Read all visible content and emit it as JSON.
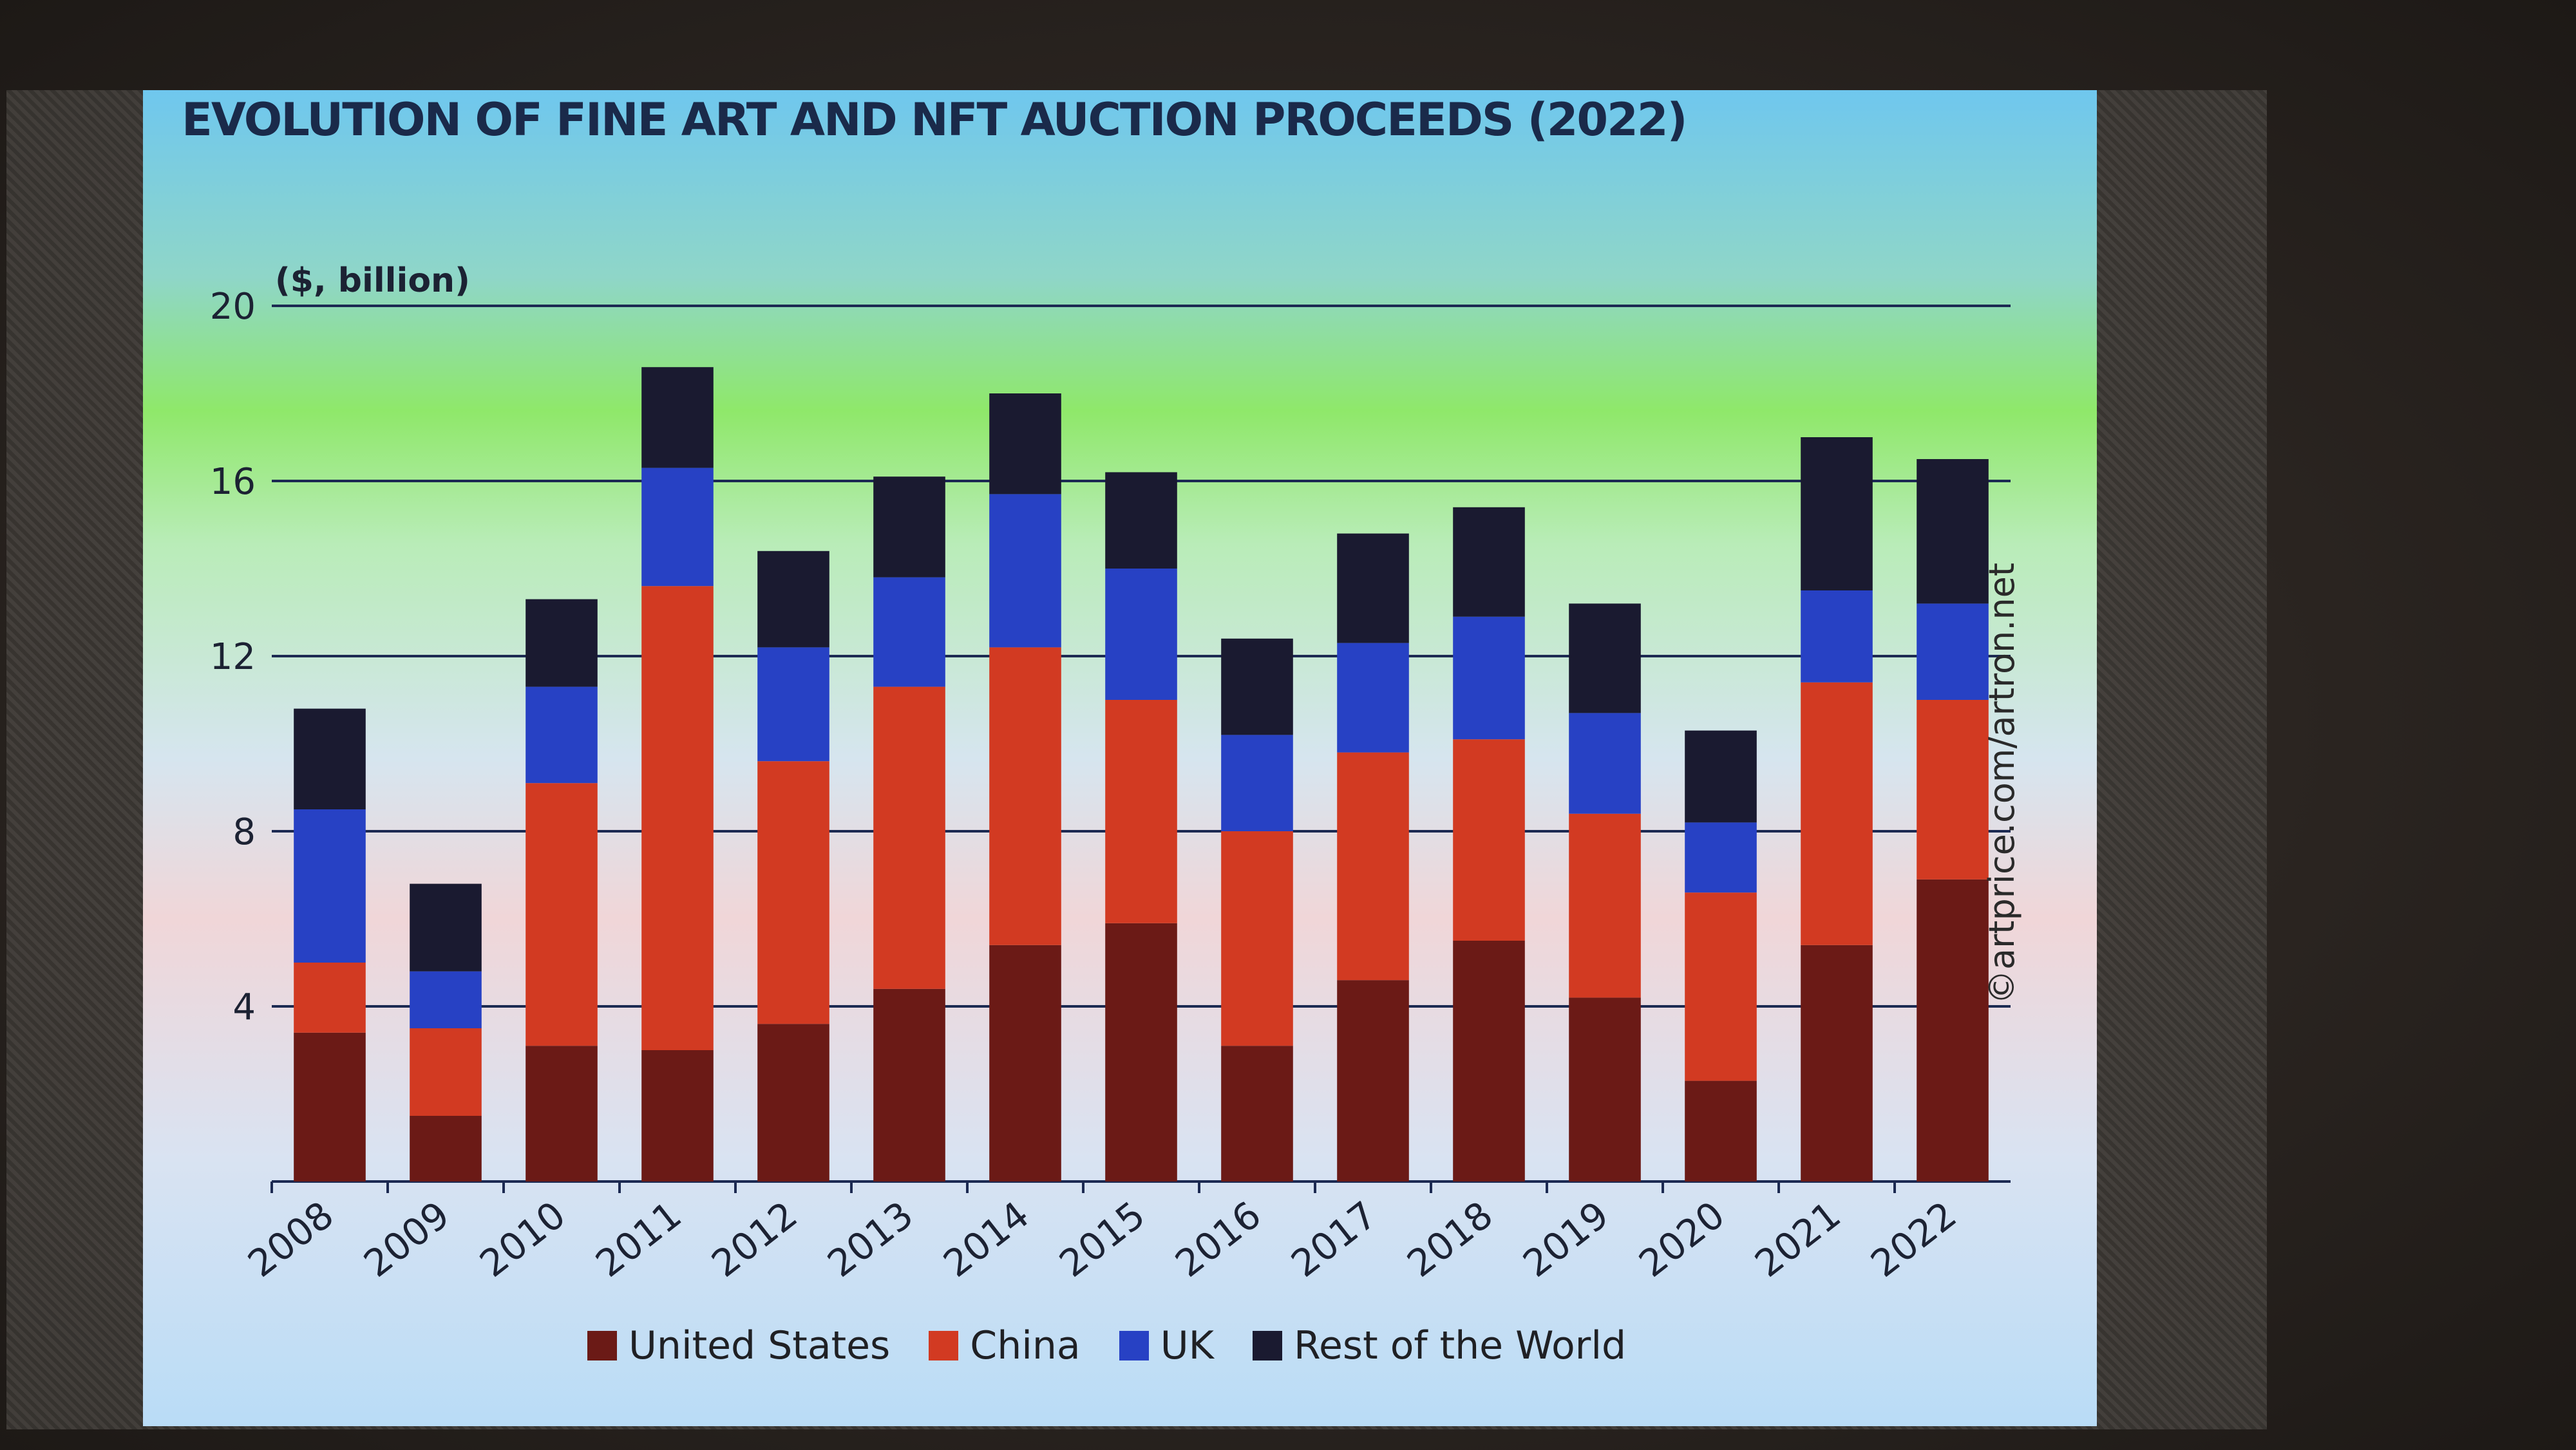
{
  "title": "EVOLUTION OF FINE ART AND NFT AUCTION PROCEEDS (2022)",
  "source": "©artprice.com/artron.net",
  "chart_data": {
    "type": "bar",
    "stacked": true,
    "ylabel": "($, billion)",
    "ylim": [
      0,
      20
    ],
    "yticks": [
      "4",
      "8",
      "12",
      "16",
      "20"
    ],
    "grid": true,
    "legend_position": "bottom",
    "categories": [
      "2008",
      "2009",
      "2010",
      "2011",
      "2012",
      "2013",
      "2014",
      "2015",
      "2016",
      "2017",
      "2018",
      "2019",
      "2020",
      "2021",
      "2022"
    ],
    "series": [
      {
        "name": "United States",
        "color": "#6b1a16",
        "values": [
          3.4,
          1.5,
          3.1,
          3.0,
          3.6,
          4.4,
          5.4,
          5.9,
          3.1,
          4.6,
          5.5,
          4.2,
          2.3,
          5.4,
          6.9
        ]
      },
      {
        "name": "China",
        "color": "#d23a22",
        "values": [
          1.6,
          2.0,
          6.0,
          10.6,
          6.0,
          6.9,
          6.8,
          5.1,
          4.9,
          5.2,
          4.6,
          4.2,
          4.3,
          6.0,
          4.1
        ]
      },
      {
        "name": "UK",
        "color": "#2741c4",
        "values": [
          3.5,
          1.3,
          2.2,
          2.7,
          2.6,
          2.5,
          3.5,
          3.0,
          2.2,
          2.5,
          2.8,
          2.3,
          1.6,
          2.1,
          2.2
        ]
      },
      {
        "name": "Rest of the World",
        "color": "#1a1a30",
        "values": [
          2.3,
          2.0,
          2.0,
          2.3,
          2.2,
          2.3,
          2.3,
          2.2,
          2.2,
          2.5,
          2.5,
          2.5,
          2.1,
          3.5,
          3.3
        ]
      }
    ]
  }
}
